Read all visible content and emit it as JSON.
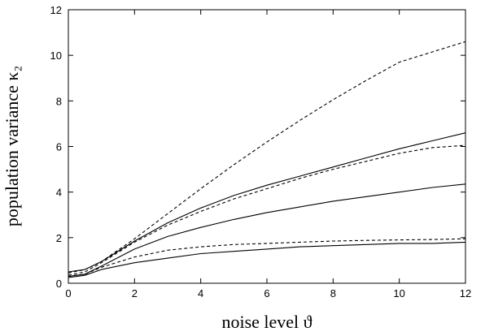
{
  "chart_data": {
    "type": "line",
    "xlabel": "noise level ϑ",
    "ylabel": "population variance κ₂",
    "xlim": [
      0,
      12
    ],
    "ylim": [
      0,
      12
    ],
    "xticks": [
      "0",
      "2",
      "4",
      "6",
      "8",
      "10",
      "12"
    ],
    "yticks": [
      "0",
      "2",
      "4",
      "6",
      "8",
      "10",
      "12"
    ],
    "grid": false,
    "series": [
      {
        "style": "dashed",
        "x": [
          0,
          0.5,
          1,
          2,
          3,
          4,
          5,
          6,
          7,
          8,
          9,
          10,
          11,
          12
        ],
        "y": [
          0.45,
          0.6,
          0.95,
          1.95,
          3.05,
          4.15,
          5.2,
          6.2,
          7.15,
          8.05,
          8.9,
          9.7,
          10.15,
          10.6
        ]
      },
      {
        "style": "solid",
        "x": [
          0,
          0.5,
          1,
          2,
          3,
          4,
          5,
          6,
          7,
          8,
          9,
          10,
          11,
          12
        ],
        "y": [
          0.5,
          0.6,
          0.95,
          1.85,
          2.65,
          3.3,
          3.85,
          4.3,
          4.7,
          5.1,
          5.5,
          5.9,
          6.25,
          6.6
        ]
      },
      {
        "style": "dashed",
        "x": [
          0,
          0.5,
          1,
          2,
          3,
          4,
          5,
          6,
          7,
          8,
          9,
          10,
          11,
          12
        ],
        "y": [
          0.35,
          0.5,
          0.9,
          1.8,
          2.55,
          3.15,
          3.7,
          4.15,
          4.6,
          5.0,
          5.35,
          5.7,
          5.95,
          6.05
        ]
      },
      {
        "style": "solid",
        "x": [
          0,
          0.5,
          1,
          2,
          3,
          4,
          5,
          6,
          7,
          8,
          9,
          10,
          11,
          12
        ],
        "y": [
          0.3,
          0.4,
          0.75,
          1.5,
          2.05,
          2.45,
          2.8,
          3.1,
          3.35,
          3.6,
          3.8,
          4.0,
          4.2,
          4.35
        ]
      },
      {
        "style": "dashed",
        "x": [
          0,
          0.5,
          1,
          2,
          3,
          4,
          5,
          6,
          7,
          8,
          9,
          10,
          11,
          12
        ],
        "y": [
          0.3,
          0.4,
          0.7,
          1.15,
          1.45,
          1.6,
          1.7,
          1.75,
          1.8,
          1.85,
          1.88,
          1.9,
          1.92,
          1.95
        ]
      },
      {
        "style": "solid",
        "x": [
          0,
          0.5,
          1,
          2,
          3,
          4,
          5,
          6,
          7,
          8,
          9,
          10,
          11,
          12
        ],
        "y": [
          0.25,
          0.35,
          0.6,
          0.9,
          1.1,
          1.3,
          1.4,
          1.5,
          1.6,
          1.65,
          1.7,
          1.75,
          1.75,
          1.8
        ]
      }
    ]
  }
}
